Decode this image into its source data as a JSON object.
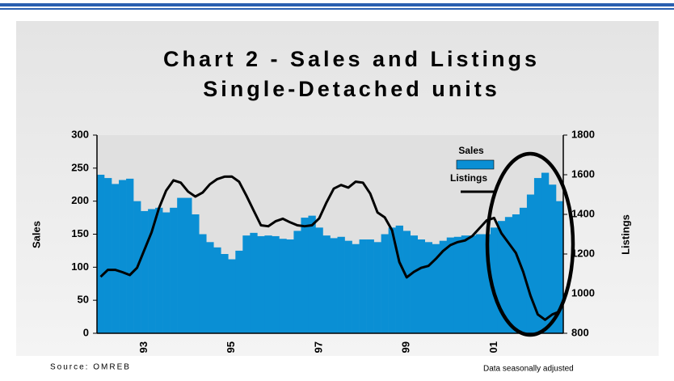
{
  "chart_data": {
    "type": "bar_line",
    "title": "Chart 2 - Sales and Listings",
    "subtitle": "Single-Detached units",
    "y_label": "Sales",
    "y2_label": "Listings",
    "source": "Source: OMREB",
    "note": "Data seasonally adjusted",
    "categories": [
      null,
      null,
      null,
      null,
      null,
      null,
      "93",
      null,
      null,
      null,
      null,
      null,
      null,
      null,
      null,
      null,
      null,
      null,
      "95",
      null,
      null,
      null,
      null,
      null,
      null,
      null,
      null,
      null,
      null,
      null,
      "97",
      null,
      null,
      null,
      null,
      null,
      null,
      null,
      null,
      null,
      null,
      null,
      "99",
      null,
      null,
      null,
      null,
      null,
      null,
      null,
      null,
      null,
      null,
      null,
      "01",
      null,
      null,
      null,
      null,
      null,
      null,
      null,
      null,
      null
    ],
    "series": [
      {
        "name": "Sales",
        "color": "#0a8fd4",
        "kind": "bar",
        "values": [
          240,
          235,
          226,
          232,
          234,
          200,
          185,
          188,
          190,
          183,
          190,
          205,
          205,
          180,
          150,
          138,
          130,
          120,
          112,
          125,
          148,
          152,
          147,
          148,
          147,
          143,
          142,
          155,
          175,
          178,
          160,
          148,
          144,
          146,
          140,
          135,
          142,
          142,
          138,
          150,
          160,
          163,
          155,
          148,
          142,
          138,
          135,
          140,
          145,
          146,
          148,
          148,
          150,
          150,
          160,
          170,
          176,
          180,
          190,
          210,
          235,
          243,
          225,
          200
        ]
      },
      {
        "name": "Listings",
        "color": "#000000",
        "kind": "line",
        "axis": "y2",
        "values": [
          1085,
          1120,
          1120,
          1108,
          1094,
          1130,
          1220,
          1310,
          1430,
          1520,
          1572,
          1560,
          1515,
          1490,
          1510,
          1552,
          1578,
          1590,
          1591,
          1565,
          1495,
          1420,
          1345,
          1340,
          1365,
          1378,
          1360,
          1345,
          1340,
          1345,
          1380,
          1460,
          1530,
          1548,
          1535,
          1565,
          1560,
          1505,
          1410,
          1385,
          1320,
          1160,
          1082,
          1110,
          1130,
          1140,
          1175,
          1215,
          1245,
          1260,
          1268,
          1290,
          1330,
          1370,
          1382,
          1305,
          1255,
          1205,
          1110,
          990,
          895,
          868,
          895,
          910
        ]
      }
    ],
    "ylim": [
      0,
      300
    ],
    "yticks": [
      0,
      50,
      100,
      150,
      200,
      250,
      300
    ],
    "y2lim": [
      800,
      1800
    ],
    "y2ticks": [
      800,
      1000,
      1200,
      1400,
      1600,
      1800
    ]
  }
}
